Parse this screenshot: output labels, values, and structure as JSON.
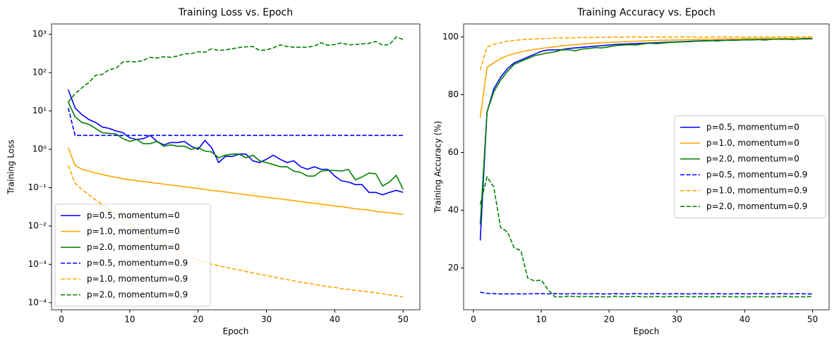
{
  "chart_data": [
    {
      "type": "line",
      "title": "Training Loss vs. Epoch",
      "xlabel": "Epoch",
      "ylabel": "Training Loss",
      "yscale": "log",
      "legend": "lower left",
      "x": [
        1,
        2,
        3,
        4,
        5,
        6,
        7,
        8,
        9,
        10,
        11,
        12,
        13,
        14,
        15,
        16,
        17,
        18,
        19,
        20,
        21,
        22,
        23,
        24,
        25,
        26,
        27,
        28,
        29,
        30,
        31,
        32,
        33,
        34,
        35,
        36,
        37,
        38,
        39,
        40,
        41,
        42,
        43,
        44,
        45,
        46,
        47,
        48,
        49,
        50
      ],
      "xlim": [
        -1.45,
        52.45
      ],
      "xticks": [
        0,
        10,
        20,
        30,
        40,
        50
      ],
      "ylim": [
        6.5e-05,
        1860
      ],
      "yticks": [
        {
          "value": 0.0001,
          "label": "10⁻⁴"
        },
        {
          "value": 0.001,
          "label": "10⁻³"
        },
        {
          "value": 0.01,
          "label": "10⁻²"
        },
        {
          "value": 0.1,
          "label": "10⁻¹"
        },
        {
          "value": 1,
          "label": "10⁰"
        },
        {
          "value": 10,
          "label": "10¹"
        },
        {
          "value": 100,
          "label": "10²"
        },
        {
          "value": 1000,
          "label": "10³"
        }
      ],
      "series": [
        {
          "name": "p=0.5, momentum=0",
          "color": "#0000ff",
          "linestyle": "solid",
          "values": [
            36,
            12,
            8,
            6,
            5,
            3.8,
            3.5,
            3.0,
            2.7,
            2.0,
            1.8,
            1.9,
            2.3,
            1.6,
            1.3,
            1.5,
            1.5,
            1.6,
            1.2,
            1.0,
            1.7,
            1.1,
            0.45,
            0.65,
            0.65,
            0.75,
            0.75,
            0.5,
            0.45,
            0.55,
            0.7,
            0.55,
            0.45,
            0.5,
            0.35,
            0.3,
            0.35,
            0.3,
            0.3,
            0.2,
            0.15,
            0.14,
            0.12,
            0.12,
            0.075,
            0.075,
            0.065,
            0.075,
            0.085,
            0.075
          ]
        },
        {
          "name": "p=1.0, momentum=0",
          "color": "#ffa500",
          "linestyle": "solid",
          "values": [
            1.1,
            0.38,
            0.3,
            0.27,
            0.24,
            0.22,
            0.2,
            0.185,
            0.17,
            0.16,
            0.152,
            0.144,
            0.137,
            0.13,
            0.123,
            0.117,
            0.111,
            0.105,
            0.1,
            0.095,
            0.09,
            0.085,
            0.081,
            0.077,
            0.073,
            0.069,
            0.066,
            0.062,
            0.059,
            0.056,
            0.053,
            0.051,
            0.048,
            0.046,
            0.043,
            0.041,
            0.039,
            0.037,
            0.035,
            0.033,
            0.032,
            0.03,
            0.028,
            0.027,
            0.026,
            0.024,
            0.023,
            0.022,
            0.021,
            0.02
          ]
        },
        {
          "name": "p=2.0, momentum=0",
          "color": "#008000",
          "linestyle": "solid",
          "values": [
            17,
            7,
            5,
            4.5,
            3.5,
            2.7,
            2.6,
            2.5,
            1.9,
            1.6,
            1.8,
            1.4,
            1.4,
            1.6,
            1.2,
            1.3,
            1.2,
            1.2,
            1.0,
            1.1,
            0.9,
            0.85,
            0.6,
            0.7,
            0.75,
            0.75,
            0.6,
            0.7,
            0.5,
            0.45,
            0.4,
            0.35,
            0.35,
            0.27,
            0.25,
            0.2,
            0.2,
            0.27,
            0.28,
            0.28,
            0.27,
            0.3,
            0.16,
            0.19,
            0.24,
            0.23,
            0.11,
            0.14,
            0.21,
            0.09
          ]
        },
        {
          "name": "p=0.5, momentum=0.9",
          "color": "#0000ff",
          "linestyle": "dashed",
          "values": [
            12,
            2.3,
            2.3,
            2.3,
            2.3,
            2.3,
            2.3,
            2.3,
            2.3,
            2.3,
            2.3,
            2.3,
            2.3,
            2.3,
            2.3,
            2.3,
            2.3,
            2.3,
            2.3,
            2.3,
            2.3,
            2.3,
            2.3,
            2.3,
            2.3,
            2.3,
            2.3,
            2.3,
            2.3,
            2.3,
            2.3,
            2.3,
            2.3,
            2.3,
            2.3,
            2.3,
            2.3,
            2.3,
            2.3,
            2.3,
            2.3,
            2.3,
            2.3,
            2.3,
            2.3,
            2.3,
            2.3,
            2.3,
            2.3,
            2.3
          ]
        },
        {
          "name": "p=1.0, momentum=0.9",
          "color": "#ffa500",
          "linestyle": "dashed",
          "values": [
            0.38,
            0.13,
            0.09,
            0.065,
            0.048,
            0.036,
            0.027,
            0.02,
            0.015,
            0.011,
            0.0085,
            0.0066,
            0.0052,
            0.0041,
            0.0033,
            0.0027,
            0.0022,
            0.0018,
            0.0015,
            0.0013,
            0.00115,
            0.001,
            0.00092,
            0.00084,
            0.00077,
            0.00071,
            0.00065,
            0.0006,
            0.00055,
            0.00051,
            0.00047,
            0.00043,
            0.0004,
            0.00037,
            0.00034,
            0.00032,
            0.0003,
            0.00028,
            0.00026,
            0.00025,
            0.00023,
            0.00022,
            0.00021,
            0.0002,
            0.00019,
            0.00018,
            0.00017,
            0.00016,
            0.00015,
            0.00014
          ]
        },
        {
          "name": "p=2.0, momentum=0.9",
          "color": "#008000",
          "linestyle": "dashed",
          "values": [
            17,
            28,
            40,
            55,
            85,
            90,
            120,
            130,
            190,
            195,
            190,
            210,
            250,
            240,
            260,
            250,
            270,
            310,
            310,
            350,
            340,
            420,
            380,
            390,
            420,
            450,
            470,
            480,
            380,
            390,
            440,
            530,
            480,
            460,
            460,
            460,
            490,
            600,
            520,
            540,
            600,
            530,
            540,
            560,
            580,
            650,
            520,
            540,
            850,
            730
          ]
        }
      ]
    },
    {
      "type": "line",
      "title": "Training Accuracy vs. Epoch",
      "xlabel": "Epoch",
      "ylabel": "Training Accuracy (%)",
      "yscale": "linear",
      "legend": "center right",
      "x": [
        1,
        2,
        3,
        4,
        5,
        6,
        7,
        8,
        9,
        10,
        11,
        12,
        13,
        14,
        15,
        16,
        17,
        18,
        19,
        20,
        21,
        22,
        23,
        24,
        25,
        26,
        27,
        28,
        29,
        30,
        31,
        32,
        33,
        34,
        35,
        36,
        37,
        38,
        39,
        40,
        41,
        42,
        43,
        44,
        45,
        46,
        47,
        48,
        49,
        50
      ],
      "xlim": [
        -1.45,
        52.45
      ],
      "xticks": [
        0,
        10,
        20,
        30,
        40,
        50
      ],
      "ylim": [
        5.5,
        104.5
      ],
      "yticks": [
        20,
        40,
        60,
        80,
        100
      ],
      "series": [
        {
          "name": "p=0.5, momentum=0",
          "color": "#0000ff",
          "linestyle": "solid",
          "values": [
            29.5,
            74,
            82,
            86,
            89,
            91,
            92,
            93,
            94,
            95,
            95.5,
            95.5,
            95.6,
            96,
            96.2,
            96.4,
            96.6,
            96.8,
            97,
            97.2,
            97.4,
            97.5,
            97.6,
            97.7,
            97.8,
            97.9,
            98,
            98.1,
            98.2,
            98.3,
            98.4,
            98.5,
            98.6,
            98.7,
            98.7,
            98.8,
            98.8,
            98.9,
            98.9,
            99,
            99,
            99.1,
            99.1,
            99.2,
            99.2,
            99.2,
            99.3,
            99.3,
            99.3,
            99.4
          ]
        },
        {
          "name": "p=1.0, momentum=0",
          "color": "#ffa500",
          "linestyle": "solid",
          "values": [
            72,
            89.5,
            91,
            92.5,
            93.5,
            94.2,
            94.8,
            95.3,
            95.7,
            96,
            96.3,
            96.6,
            96.9,
            97.1,
            97.3,
            97.5,
            97.7,
            97.9,
            98,
            98.1,
            98.2,
            98.3,
            98.4,
            98.5,
            98.6,
            98.7,
            98.8,
            98.85,
            98.9,
            98.95,
            99,
            99.05,
            99.1,
            99.15,
            99.2,
            99.25,
            99.3,
            99.3,
            99.35,
            99.4,
            99.4,
            99.45,
            99.45,
            99.5,
            99.5,
            99.5,
            99.55,
            99.55,
            99.6,
            99.6
          ]
        },
        {
          "name": "p=2.0, momentum=0",
          "color": "#008000",
          "linestyle": "solid",
          "values": [
            35,
            74,
            81,
            85,
            88,
            90.5,
            91.5,
            92.5,
            93.5,
            94,
            94.5,
            94.8,
            95.5,
            95.6,
            95.2,
            95.8,
            96,
            96.3,
            96.2,
            96.6,
            97,
            97.2,
            97.3,
            97.2,
            97.6,
            97.8,
            97.7,
            97.9,
            98.1,
            98.2,
            98.3,
            98.4,
            98.5,
            98.6,
            98.7,
            98.6,
            98.8,
            98.8,
            98.9,
            99,
            99,
            99.1,
            98.9,
            99.2,
            99.2,
            99.3,
            99.1,
            99.3,
            99.4,
            99.4
          ]
        },
        {
          "name": "p=0.5, momentum=0.9",
          "color": "#0000ff",
          "linestyle": "dashed",
          "values": [
            11.6,
            11.2,
            11.1,
            11,
            11,
            11,
            11,
            11,
            11.1,
            11.1,
            11,
            11.1,
            11,
            11,
            11.1,
            11,
            11,
            11.1,
            11,
            11,
            11.1,
            11,
            11,
            11.1,
            11,
            11,
            11.1,
            11,
            11,
            11.1,
            11,
            11,
            11.1,
            11,
            11,
            11.1,
            11,
            11,
            11.1,
            11,
            11,
            11.1,
            11,
            11,
            11.1,
            11,
            11,
            11.1,
            11,
            11
          ]
        },
        {
          "name": "p=1.0, momentum=0.9",
          "color": "#ffa500",
          "linestyle": "dashed",
          "values": [
            88.5,
            96.5,
            97.5,
            98,
            98.5,
            98.8,
            99,
            99.2,
            99.3,
            99.4,
            99.5,
            99.6,
            99.6,
            99.7,
            99.7,
            99.8,
            99.8,
            99.8,
            99.9,
            99.9,
            100,
            99.9,
            100,
            100,
            99.9,
            100,
            100,
            100,
            99.9,
            100,
            100,
            100,
            100,
            99.9,
            100,
            100,
            100,
            100,
            100,
            99.9,
            100,
            100,
            100,
            100,
            100,
            100,
            100,
            100,
            100,
            100
          ]
        },
        {
          "name": "p=2.0, momentum=0.9",
          "color": "#008000",
          "linestyle": "dashed",
          "values": [
            42,
            51.5,
            48,
            34,
            32.5,
            27,
            26,
            16.5,
            15.5,
            15.8,
            12.5,
            10,
            10,
            10.2,
            10.1,
            10,
            10.1,
            10,
            10,
            10,
            10.2,
            10,
            10.1,
            10.1,
            10,
            10,
            10.1,
            10,
            10.1,
            10,
            10.1,
            10,
            10,
            10.1,
            10,
            10,
            10.1,
            10,
            10,
            10,
            10,
            10.1,
            10,
            10,
            10,
            10.1,
            10,
            10,
            10,
            10.1
          ]
        }
      ]
    }
  ]
}
